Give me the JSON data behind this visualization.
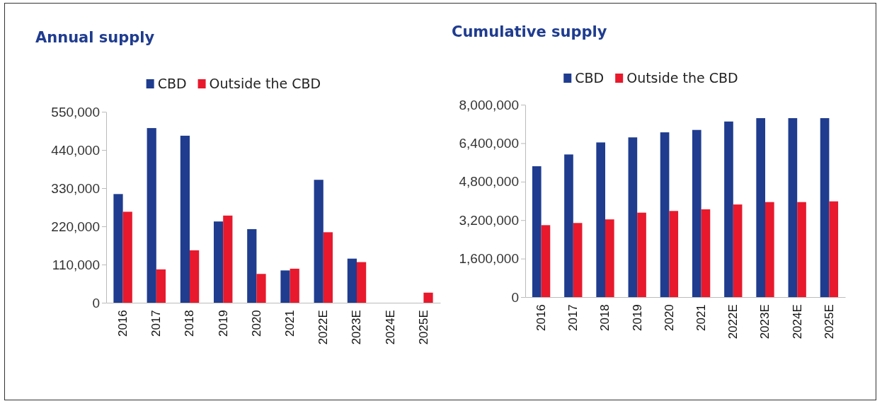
{
  "chart_data": [
    {
      "type": "bar",
      "title": "Annual supply",
      "categories": [
        "2016",
        "2017",
        "2018",
        "2019",
        "2020",
        "2021",
        "2022E",
        "2023E",
        "2024E",
        "2025E"
      ],
      "series": [
        {
          "name": "CBD",
          "color": "#1f3c8f",
          "values": [
            313000,
            503000,
            481000,
            234000,
            212000,
            93000,
            354000,
            127000,
            0,
            0
          ]
        },
        {
          "name": "Outside the CBD",
          "color": "#e8192c",
          "values": [
            262000,
            96000,
            151000,
            251000,
            83000,
            98000,
            203000,
            117000,
            0,
            29000
          ]
        }
      ],
      "ylim": [
        0,
        550000
      ],
      "yticks": [
        {
          "value": 0,
          "label": "0"
        },
        {
          "value": 110000,
          "label": "110,000"
        },
        {
          "value": 220000,
          "label": "220,000"
        },
        {
          "value": 330000,
          "label": "330,000"
        },
        {
          "value": 440000,
          "label": "440,000"
        },
        {
          "value": 550000,
          "label": "550,000"
        }
      ],
      "legend": "top",
      "grid": false
    },
    {
      "type": "bar",
      "title": "Cumulative supply",
      "categories": [
        "2016",
        "2017",
        "2018",
        "2019",
        "2020",
        "2021",
        "2022E",
        "2023E",
        "2024E",
        "2025E"
      ],
      "series": [
        {
          "name": "CBD",
          "color": "#1f3c8f",
          "values": [
            5440000,
            5930000,
            6430000,
            6640000,
            6850000,
            6950000,
            7300000,
            7440000,
            7440000,
            7440000
          ]
        },
        {
          "name": "Outside the CBD",
          "color": "#e8192c",
          "values": [
            2990000,
            3080000,
            3230000,
            3510000,
            3580000,
            3650000,
            3850000,
            3950000,
            3950000,
            3980000
          ]
        }
      ],
      "ylim": [
        0,
        8000000
      ],
      "yticks": [
        {
          "value": 0,
          "label": "0"
        },
        {
          "value": 1600000,
          "label": "1,600,000"
        },
        {
          "value": 3200000,
          "label": "3,200,000"
        },
        {
          "value": 4800000,
          "label": "4,800,000"
        },
        {
          "value": 6400000,
          "label": "6,400,000"
        },
        {
          "value": 8000000,
          "label": "8,000,000"
        }
      ],
      "legend": "top",
      "grid": false
    }
  ]
}
